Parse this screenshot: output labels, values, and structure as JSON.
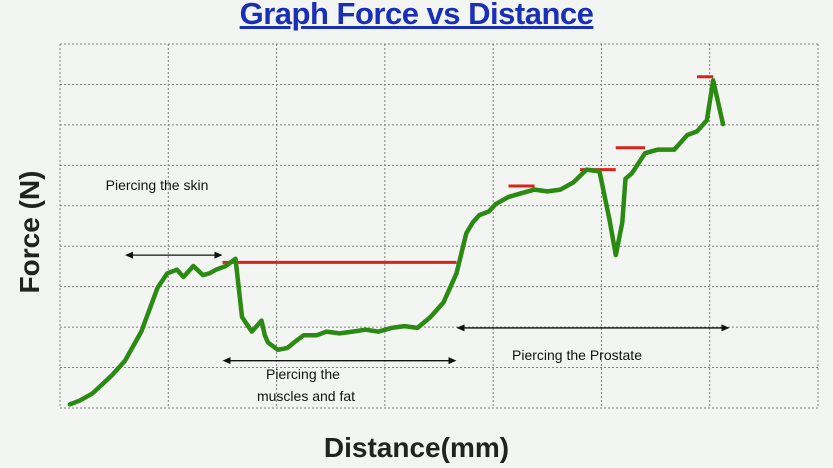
{
  "chart_data": {
    "type": "line",
    "title": "Graph Force vs Distance",
    "xlabel": "Distance(mm)",
    "ylabel": "Force (N)",
    "grid": true,
    "xlim": [
      0,
      100
    ],
    "ylim": [
      0,
      100
    ],
    "colors": {
      "curve": "#2a8a12",
      "threshold": "#d8241b",
      "arrow": "#111111",
      "grid": "#7f7f7f",
      "title": "#1a2fb8"
    },
    "series": [
      {
        "x": [
          1.5,
          3,
          5,
          8,
          10,
          12.5,
          15,
          16.5,
          18,
          19,
          20.5,
          22,
          23,
          24,
          25.5,
          27,
          28,
          29.5,
          31,
          31.5,
          32,
          33.5,
          35,
          36,
          37.5,
          39.5,
          41,
          43,
          45,
          47,
          49,
          51,
          53,
          55,
          57,
          59,
          61,
          62.5,
          63.5,
          64.5,
          66,
          67,
          69,
          71,
          73,
          75,
          77,
          79,
          81,
          83,
          84.5,
          85.5,
          86.5,
          87,
          88,
          90,
          92,
          94.5,
          96.5,
          98,
          99.5,
          100.5,
          102
        ],
        "y": [
          1,
          2,
          4,
          9,
          13,
          21,
          33,
          37,
          38,
          36,
          39,
          36.5,
          37,
          38,
          39,
          41,
          25,
          21,
          24,
          20,
          18,
          16,
          16.5,
          18,
          20,
          20,
          21,
          20.5,
          21,
          21.5,
          21,
          22,
          22.5,
          22,
          25,
          29,
          37,
          48,
          51,
          53,
          54,
          56,
          58,
          59,
          60,
          59.5,
          60,
          62,
          65.5,
          65,
          52,
          42,
          51,
          63,
          64.5,
          70,
          71,
          71,
          75,
          76,
          79,
          90,
          78
        ]
      }
    ],
    "threshold_lines": [
      {
        "x": [
          25,
          61
        ],
        "y": 40
      },
      {
        "x": [
          69,
          73
        ],
        "y": 61
      },
      {
        "x": [
          80,
          85.5
        ],
        "y": 65.5
      },
      {
        "x": [
          85.5,
          90
        ],
        "y": 71.5
      },
      {
        "x": [
          98,
          100.5
        ],
        "y": 91
      }
    ],
    "annotations": [
      {
        "text": "Piercing the skin",
        "arrow": [
          10,
          25
        ],
        "arrow_y": 42
      },
      {
        "text": "Piercing the muscles and fat",
        "arrow": [
          25,
          61
        ],
        "arrow_y": 13
      },
      {
        "text": "Piercing the Prostate",
        "arrow": [
          61,
          103
        ],
        "arrow_y": 22
      }
    ]
  }
}
